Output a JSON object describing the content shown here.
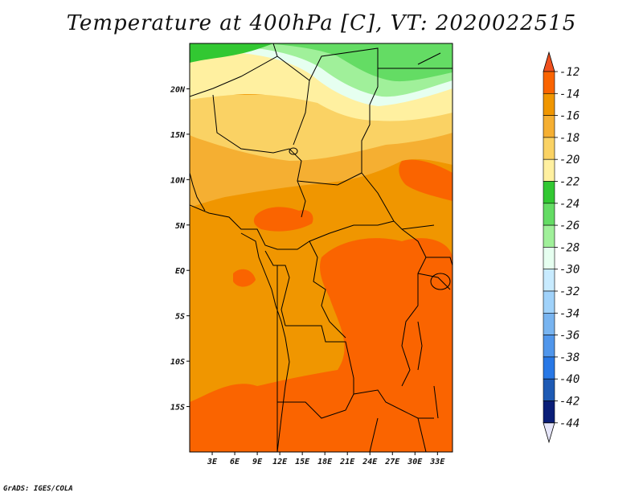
{
  "title": "Temperature at 400hPa [C], VT: 2020022515",
  "credit": "GrADS: IGES/COLA",
  "map": {
    "lon_range": [
      0,
      35
    ],
    "lat_range": [
      -20,
      25
    ],
    "lat_ticks": [
      {
        "label": "20N",
        "value": 20
      },
      {
        "label": "15N",
        "value": 15
      },
      {
        "label": "10N",
        "value": 10
      },
      {
        "label": "5N",
        "value": 5
      },
      {
        "label": "EQ",
        "value": 0
      },
      {
        "label": "5S",
        "value": -5
      },
      {
        "label": "10S",
        "value": -10
      },
      {
        "label": "15S",
        "value": -15
      }
    ],
    "lon_ticks": [
      {
        "label": "3E",
        "value": 3
      },
      {
        "label": "6E",
        "value": 6
      },
      {
        "label": "9E",
        "value": 9
      },
      {
        "label": "12E",
        "value": 12
      },
      {
        "label": "15E",
        "value": 15
      },
      {
        "label": "18E",
        "value": 18
      },
      {
        "label": "21E",
        "value": 21
      },
      {
        "label": "24E",
        "value": 24
      },
      {
        "label": "27E",
        "value": 27
      },
      {
        "label": "30E",
        "value": 30
      },
      {
        "label": "33E",
        "value": 33
      }
    ]
  },
  "colorbar": {
    "levels": [
      "-12",
      "-14",
      "-16",
      "-18",
      "-20",
      "-22",
      "-24",
      "-26",
      "-28",
      "-30",
      "-32",
      "-34",
      "-36",
      "-38",
      "-40",
      "-42",
      "-44"
    ],
    "top_arrow_color": "#f0501e",
    "bottom_arrow_color": "#e6e6fa",
    "colors": [
      "#fa6400",
      "#f09600",
      "#f5af32",
      "#fad264",
      "#fff0a0",
      "#32c832",
      "#64dc64",
      "#a0f09a",
      "#e6fff0",
      "#c8ebff",
      "#a0d2fa",
      "#78b4f0",
      "#5096eb",
      "#2878e6",
      "#1e5ab4",
      "#0a1e78"
    ]
  }
}
